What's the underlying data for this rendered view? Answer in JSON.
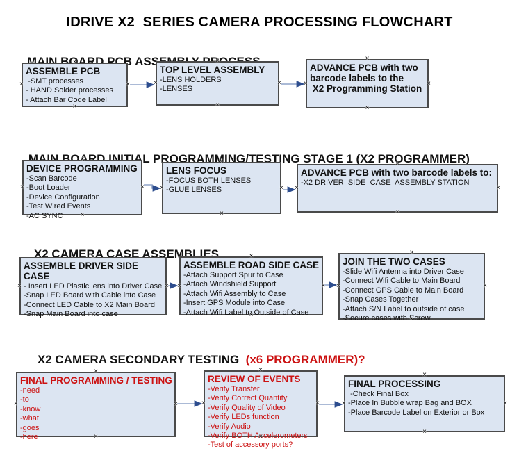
{
  "title": "IDRIVE X2  SERIES CAMERA PROCESSING FLOWCHART",
  "colors": {
    "box_fill": "#dce5f2",
    "box_border": "#4a4a4a",
    "text_black": "#111111",
    "text_red": "#cc1111",
    "arrow_line": "#8fa3c8",
    "arrow_head": "#2d4d8e"
  },
  "sections": [
    {
      "header": "MAIN BOARD PCB ASSEMBLY PROCESS",
      "boxes": [
        {
          "title": "ASSEMBLE PCB",
          "items": [
            " -SMT processes",
            "- HAND Solder processes",
            "- Attach Bar Code Label"
          ]
        },
        {
          "title": "TOP LEVEL ASSEMBLY",
          "items": [
            "-LENS HOLDERS",
            "-LENSES"
          ]
        },
        {
          "title": "ADVANCE PCB with two\nbarcode labels to the\n X2 Programming Station",
          "items": []
        }
      ]
    },
    {
      "header": "MAIN BOARD INITIAL PROGRAMMING/TESTING STAGE 1 (X2 PROGRAMMER)",
      "boxes": [
        {
          "title": "DEVICE PROGRAMMING",
          "items": [
            "-Scan Barcode",
            "-Boot Loader",
            "-Device Configuration",
            "-Test Wired Events",
            "-AC SYNC"
          ]
        },
        {
          "title": "LENS FOCUS",
          "items": [
            "-FOCUS BOTH LENSES",
            "-GLUE LENSES"
          ]
        },
        {
          "title": "ADVANCE PCB with two barcode labels to:",
          "items": [
            "-X2 DRIVER  SIDE  CASE  ASSEMBLY STATION"
          ]
        }
      ]
    },
    {
      "header": "X2 CAMERA CASE ASSEMBLIES",
      "boxes": [
        {
          "title": "ASSEMBLE DRIVER SIDE CASE",
          "items": [
            "- Insert LED Plastic lens into Driver Case",
            "-Snap LED Board with Cable into Case",
            "-Connect LED Cable to X2 Main Board",
            "-Snap Main Board into case"
          ]
        },
        {
          "title": "ASSEMBLE ROAD SIDE CASE",
          "items": [
            "-Attach Support Spur to Case",
            "-Attach Windshield Support",
            "-Attach Wifi Assembly to Case",
            "-Insert GPS Module into Case",
            "-Attach Wifi Label to Outside of Case"
          ]
        },
        {
          "title": "JOIN THE TWO CASES",
          "items": [
            "-Slide Wifi Antenna into Driver Case",
            "-Connect Wifi Cable to Main Board",
            "-Connect GPS Cable to Main Board",
            "-Snap Cases Together",
            "-Attach S/N Label to outside of case",
            "-Secure cases with Screw"
          ]
        }
      ]
    },
    {
      "header": "X2 CAMERA SECONDARY TESTING ",
      "header_red": " (x6 PROGRAMMER)?",
      "boxes": [
        {
          "title": "FINAL PROGRAMMING / TESTING",
          "items": [
            "-need",
            "-to",
            "-know",
            "-what",
            "-goes",
            "-here"
          ]
        },
        {
          "title": "REVIEW OF EVENTS",
          "items": [
            "-Verify Transfer",
            "-Verify Correct Quantity",
            "-Verify Quality of Video",
            "-Verify LEDs function",
            "-Verify Audio",
            "-Verify BOTH Accelerometers",
            "-Test of accessory ports?"
          ]
        },
        {
          "title": "FINAL PROCESSING",
          "items": [
            " -Check Final Box",
            "-Place In Bubble wrap Bag and BOX",
            "-Place Barcode Label on Exterior or Box"
          ]
        }
      ]
    }
  ]
}
